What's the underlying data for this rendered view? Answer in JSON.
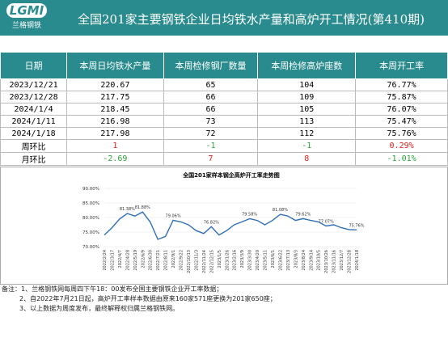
{
  "header": {
    "logo_text": "LGMI",
    "logo_sub": "兰格钢铁",
    "title": "全国201家主要钢铁企业日均铁水产量和高炉开工情况(第410期)"
  },
  "table": {
    "columns": [
      "日期",
      "本周日均铁水产量",
      "本周检修钢厂数量",
      "本周检修高炉座数",
      "本周开工率"
    ],
    "rows": [
      [
        "2023/12/21",
        "220.67",
        "65",
        "104",
        "76.77%"
      ],
      [
        "2023/12/28",
        "217.75",
        "66",
        "109",
        "75.87%"
      ],
      [
        "2024/1/4",
        "218.45",
        "66",
        "105",
        "76.07%"
      ],
      [
        "2024/1/11",
        "216.98",
        "73",
        "113",
        "75.47%"
      ],
      [
        "2024/1/18",
        "217.98",
        "72",
        "112",
        "75.76%"
      ],
      [
        "周环比",
        "1",
        "-1",
        "-1",
        "0.29%"
      ],
      [
        "月环比",
        "-2.69",
        "7",
        "8",
        "-1.01%"
      ]
    ]
  },
  "chart_data": {
    "type": "line",
    "title": "全国201家样本钢企高炉开工率走势图",
    "categories": [
      "2022/2/24",
      "2022/3/17",
      "2022/4/7",
      "2022/4/28",
      "2022/5/19",
      "2022/6/9",
      "2022/6/30",
      "2022/7/21",
      "2022/8/11",
      "2022/9/1",
      "2022/9/22",
      "2022/10/13",
      "2022/11/3",
      "2022/11/24",
      "2022/12/15",
      "2023/1/5",
      "2023/1/26",
      "2023/2/16",
      "2023/3/9",
      "2023/3/30",
      "2023/4/20",
      "2023/5/11",
      "2023/6/1",
      "2023/6/22",
      "2023/7/13",
      "2023/8/3",
      "2023/8/24",
      "2023/9/14",
      "2023/10/5",
      "2023/10/26",
      "2023/11/16",
      "2023/12/7",
      "2023/12/28",
      "2024/1/18"
    ],
    "series": [
      {
        "color": "#2f6fb5",
        "values": [
          74.0,
          76.5,
          79.5,
          81.38,
          80.5,
          81.88,
          78.5,
          72.5,
          73.5,
          79.06,
          78.5,
          77.5,
          75.5,
          74.5,
          76.82,
          74.0,
          75.5,
          77.5,
          78.5,
          79.58,
          79.0,
          77.5,
          79.0,
          81.08,
          80.5,
          79.0,
          79.62,
          79.0,
          78.5,
          77.07,
          77.5,
          76.5,
          75.87,
          75.76
        ],
        "value_labels": [
          null,
          null,
          null,
          "81.38%",
          null,
          "81.88%",
          null,
          null,
          null,
          "79.06%",
          null,
          null,
          null,
          null,
          "76.82%",
          null,
          null,
          null,
          null,
          "79.58%",
          null,
          null,
          null,
          "81.08%",
          null,
          null,
          "79.62%",
          null,
          null,
          "77.07%",
          null,
          null,
          null,
          "75.76%"
        ]
      }
    ],
    "ylim": [
      70,
      90
    ],
    "yticks": [
      {
        "value": 70,
        "label": "70.00%"
      },
      {
        "value": 75,
        "label": "75.00%"
      },
      {
        "value": 80,
        "label": "80.00%"
      },
      {
        "value": 85,
        "label": "85.00%"
      },
      {
        "value": 90,
        "label": "90.00%"
      }
    ],
    "grid": true
  },
  "notes": [
    "备注：1、兰格钢铁网每周四下午18：00发布全国主要钢铁企业开工率数据；",
    "2、自2022年7月21日起，高炉开工率样本数据由原来160家571座更换为201家650座；",
    "3、以上数据为周度发布，最终解释权归属兰格钢铁网。"
  ]
}
